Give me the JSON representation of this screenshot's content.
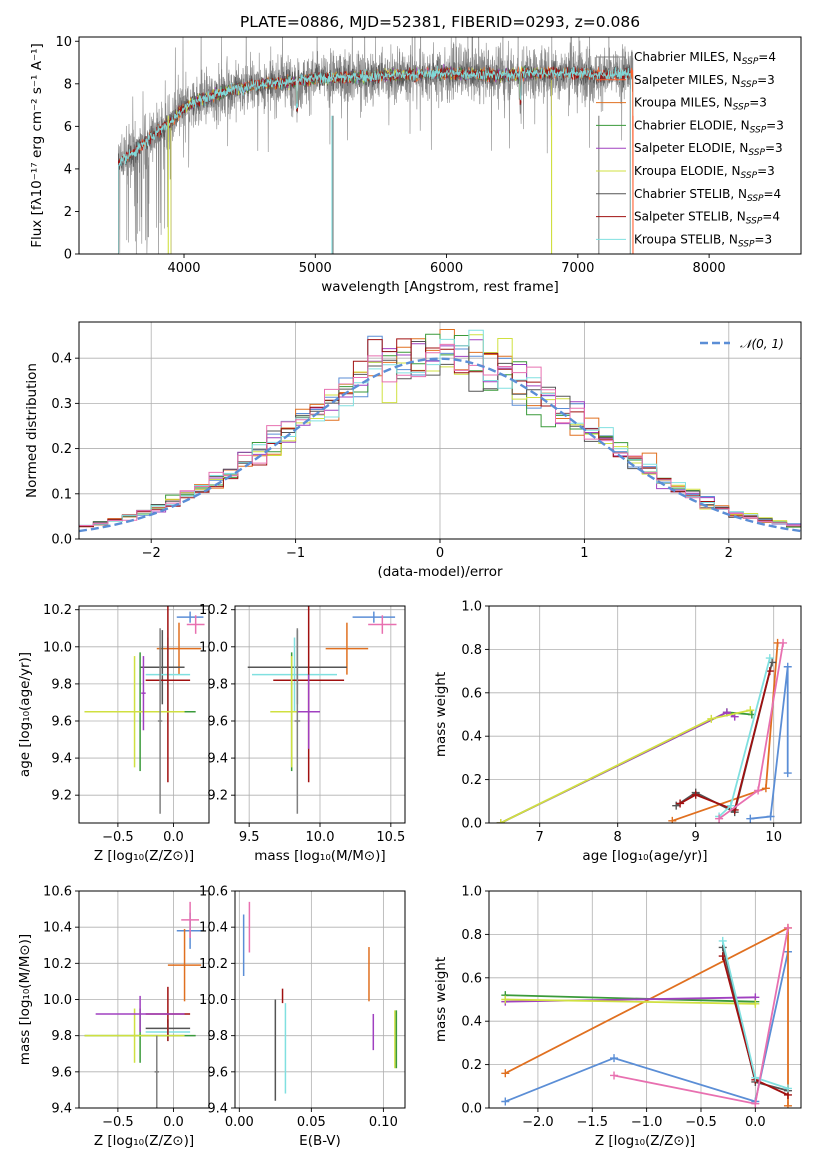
{
  "chart_data": [
    {
      "id": "spectrum",
      "type": "line",
      "title": "PLATE=0886, MJD=52381, FIBERID=0293, z=0.086",
      "xlabel": "wavelength [Angstrom, rest frame]",
      "ylabel": "Flux [fλ10⁻¹⁷ erg cm⁻² s⁻¹ A⁻¹]",
      "xlim": [
        3200,
        8700
      ],
      "ylim": [
        0,
        10.2
      ],
      "xticks": [
        4000,
        5000,
        6000,
        7000,
        8000
      ],
      "yticks": [
        0,
        2,
        4,
        6,
        8,
        10
      ],
      "grid": false,
      "legend": "upper-right",
      "series": [
        {
          "name": "Chabrier MILES, N_SSP=4",
          "color": "#808080",
          "x_range": [
            3500,
            7420
          ]
        },
        {
          "name": "Salpeter MILES, N_SSP=3",
          "color": "#ff6030",
          "x_range": [
            3500,
            7420
          ]
        },
        {
          "name": "Kroupa MILES, N_SSP=3",
          "color": "#e07020",
          "x_range": [
            3500,
            7420
          ]
        },
        {
          "name": "Chabrier ELODIE, N_SSP=3",
          "color": "#3a9a3a",
          "x_range": [
            3900,
            6800
          ]
        },
        {
          "name": "Salpeter ELODIE, N_SSP=3",
          "color": "#a040c0",
          "x_range": [
            3900,
            6800
          ]
        },
        {
          "name": "Kroupa ELODIE, N_SSP=3",
          "color": "#d0e040",
          "x_range": [
            3900,
            6800
          ]
        },
        {
          "name": "Chabrier STELIB, N_SSP=4",
          "color": "#555555",
          "x_range": [
            3500,
            7400
          ]
        },
        {
          "name": "Salpeter STELIB, N_SSP=4",
          "color": "#a01010",
          "x_range": [
            3500,
            7400
          ]
        },
        {
          "name": "Kroupa STELIB, N_SSP=3",
          "color": "#80e0e0",
          "x_range": [
            3500,
            7400
          ]
        }
      ],
      "continuum": {
        "x": [
          3500,
          3600,
          3700,
          3800,
          3900,
          4000,
          4100,
          4200,
          4400,
          4600,
          4800,
          5000,
          5200,
          5400,
          5600,
          5800,
          6000,
          6200,
          6400,
          6600,
          6800,
          7000,
          7200,
          7400
        ],
        "y": [
          4.3,
          4.7,
          5.2,
          5.8,
          6.2,
          6.9,
          7.2,
          7.4,
          7.8,
          8.0,
          8.1,
          8.25,
          8.3,
          8.35,
          8.4,
          8.45,
          8.5,
          8.45,
          8.4,
          8.5,
          8.5,
          8.5,
          8.4,
          8.5
        ]
      }
    },
    {
      "id": "residuals",
      "type": "line",
      "xlabel": "(data-model)/error",
      "ylabel": "Normed distribution",
      "xlim": [
        -2.5,
        2.5
      ],
      "ylim": [
        0,
        0.48
      ],
      "xticks": [
        -2,
        -1,
        0,
        1,
        2
      ],
      "yticks": [
        0.0,
        0.1,
        0.2,
        0.3,
        0.4
      ],
      "grid": true,
      "legend": "upper-right",
      "reference": {
        "name": "𝒩(0, 1)",
        "color": "#5b8ed6"
      },
      "series_colors": [
        "#5b8ed6",
        "#e07020",
        "#3a9a3a",
        "#a040c0",
        "#d0e040",
        "#555555",
        "#a01010",
        "#80e0e0",
        "#e870b0"
      ]
    },
    {
      "id": "age_vs_Z",
      "type": "scatter",
      "xlabel": "Z [log₁₀(Z/Z⊙)]",
      "ylabel": "age  [log₁₀(age/yr)]",
      "xlim": [
        -0.85,
        0.32
      ],
      "ylim": [
        9.05,
        10.22
      ],
      "xticks": [
        -0.5,
        0.0
      ],
      "yticks": [
        9.2,
        9.4,
        9.6,
        9.8,
        10.0,
        10.2
      ],
      "grid": true,
      "points": [
        {
          "color": "#5b8ed6",
          "x": 0.15,
          "xerr": 0.12,
          "y": 10.16,
          "yerr": 0.03
        },
        {
          "color": "#e870b0",
          "x": 0.2,
          "xerr": 0.08,
          "y": 10.12,
          "yerr": 0.05
        },
        {
          "color": "#e07020",
          "x": 0.05,
          "xerr": 0.2,
          "y": 9.99,
          "yerr": 0.14
        },
        {
          "color": "#555555",
          "x": -0.1,
          "xerr": 0.2,
          "y": 9.89,
          "yerr": 0.2
        },
        {
          "color": "#80e0e0",
          "x": -0.05,
          "xerr": 0.2,
          "y": 9.85,
          "yerr": 0.2
        },
        {
          "color": "#a01010",
          "x": -0.05,
          "xerr": 0.2,
          "y": 9.82,
          "yerr": 0.55
        },
        {
          "color": "#3a9a3a",
          "x": -0.3,
          "xerr": 0.5,
          "y": 9.65,
          "yerr": 0.32
        },
        {
          "color": "#d0e040",
          "x": -0.35,
          "xerr": 0.45,
          "y": 9.65,
          "yerr": 0.3
        },
        {
          "color": "#a040c0",
          "x": -0.27,
          "xerr": 0.02,
          "y": 9.75,
          "yerr": 0.2
        },
        {
          "color": "#808080",
          "x": -0.12,
          "xerr": 0.02,
          "y": 9.6,
          "yerr": 0.5
        }
      ]
    },
    {
      "id": "age_vs_mass",
      "type": "scatter",
      "xlabel": "mass [log₁₀(M/M⊙)]",
      "xlim": [
        9.4,
        10.6
      ],
      "ylim": [
        9.05,
        10.22
      ],
      "xticks": [
        9.5,
        10.0,
        10.5
      ],
      "yticks": [
        9.2,
        9.4,
        9.6,
        9.8,
        10.0,
        10.2
      ],
      "grid": true,
      "points": [
        {
          "color": "#5b8ed6",
          "x": 10.38,
          "xerr": 0.15,
          "y": 10.16,
          "yerr": 0.03
        },
        {
          "color": "#e870b0",
          "x": 10.44,
          "xerr": 0.1,
          "y": 10.12,
          "yerr": 0.05
        },
        {
          "color": "#e07020",
          "x": 10.19,
          "xerr": 0.15,
          "y": 9.99,
          "yerr": 0.14
        },
        {
          "color": "#555555",
          "x": 9.84,
          "xerr": 0.35,
          "y": 9.89,
          "yerr": 0.2
        },
        {
          "color": "#80e0e0",
          "x": 9.82,
          "xerr": 0.3,
          "y": 9.85,
          "yerr": 0.2
        },
        {
          "color": "#a01010",
          "x": 9.92,
          "xerr": 0.25,
          "y": 9.82,
          "yerr": 0.55
        },
        {
          "color": "#3a9a3a",
          "x": 9.8,
          "xerr": 0.15,
          "y": 9.65,
          "yerr": 0.32
        },
        {
          "color": "#d0e040",
          "x": 9.8,
          "xerr": 0.15,
          "y": 9.65,
          "yerr": 0.3
        },
        {
          "color": "#a040c0",
          "x": 9.92,
          "xerr": 0.08,
          "y": 9.65,
          "yerr": 0.2
        },
        {
          "color": "#808080",
          "x": 9.84,
          "xerr": 0.02,
          "y": 9.6,
          "yerr": 0.5
        }
      ]
    },
    {
      "id": "weight_vs_age",
      "type": "line",
      "xlabel": "age  [log₁₀(age/yr)]",
      "ylabel": "mass weight",
      "xlim": [
        6.35,
        10.35
      ],
      "ylim": [
        0.0,
        1.0
      ],
      "xticks": [
        7,
        8,
        9,
        10
      ],
      "yticks": [
        0.0,
        0.2,
        0.4,
        0.6,
        0.8,
        1.0
      ],
      "grid": true,
      "series": [
        {
          "color": "#5b8ed6",
          "x": [
            9.7,
            9.96,
            10.18,
            10.18
          ],
          "y": [
            0.02,
            0.03,
            0.72,
            0.23
          ]
        },
        {
          "color": "#e07020",
          "x": [
            8.7,
            9.9,
            10.05
          ],
          "y": [
            0.01,
            0.16,
            0.83
          ]
        },
        {
          "color": "#3a9a3a",
          "x": [
            6.5,
            9.4,
            9.72
          ],
          "y": [
            0.0,
            0.51,
            0.5
          ]
        },
        {
          "color": "#a040c0",
          "x": [
            6.5,
            9.4,
            9.5
          ],
          "y": [
            0.0,
            0.51,
            0.49
          ]
        },
        {
          "color": "#d0e040",
          "x": [
            6.5,
            9.2,
            9.7
          ],
          "y": [
            0.0,
            0.48,
            0.52
          ]
        },
        {
          "color": "#555555",
          "x": [
            8.75,
            9.0,
            9.5,
            9.98
          ],
          "y": [
            0.08,
            0.14,
            0.05,
            0.74
          ]
        },
        {
          "color": "#a01010",
          "x": [
            8.8,
            9.0,
            9.5,
            9.95
          ],
          "y": [
            0.09,
            0.13,
            0.06,
            0.7
          ]
        },
        {
          "color": "#80e0e0",
          "x": [
            9.3,
            9.45,
            9.95
          ],
          "y": [
            0.03,
            0.08,
            0.76
          ]
        },
        {
          "color": "#e870b0",
          "x": [
            9.3,
            9.8,
            10.12
          ],
          "y": [
            0.02,
            0.15,
            0.83
          ]
        }
      ]
    },
    {
      "id": "mass_vs_Z",
      "type": "scatter",
      "xlabel": "Z [log₁₀(Z/Z⊙)]",
      "ylabel": "mass [log₁₀(M/M⊙)]",
      "xlim": [
        -0.85,
        0.32
      ],
      "ylim": [
        9.4,
        10.6
      ],
      "xticks": [
        -0.5,
        0.0
      ],
      "yticks": [
        9.4,
        9.6,
        9.8,
        10.0,
        10.2,
        10.4,
        10.6
      ],
      "grid": true,
      "points": [
        {
          "color": "#5b8ed6",
          "x": 0.15,
          "xerr": 0.12,
          "y": 10.38,
          "yerr": 0.1
        },
        {
          "color": "#e870b0",
          "x": 0.15,
          "xerr": 0.08,
          "y": 10.44,
          "yerr": 0.1
        },
        {
          "color": "#e07020",
          "x": 0.1,
          "xerr": 0.15,
          "y": 10.19,
          "yerr": 0.2
        },
        {
          "color": "#555555",
          "x": -0.05,
          "xerr": 0.2,
          "y": 9.84,
          "yerr": 0.05
        },
        {
          "color": "#80e0e0",
          "x": -0.05,
          "xerr": 0.2,
          "y": 9.82,
          "yerr": 0.05
        },
        {
          "color": "#a01010",
          "x": -0.05,
          "xerr": 0.2,
          "y": 9.92,
          "yerr": 0.15
        },
        {
          "color": "#3a9a3a",
          "x": -0.3,
          "xerr": 0.5,
          "y": 9.8,
          "yerr": 0.15
        },
        {
          "color": "#d0e040",
          "x": -0.35,
          "xerr": 0.45,
          "y": 9.8,
          "yerr": 0.15
        },
        {
          "color": "#a040c0",
          "x": -0.3,
          "xerr": 0.4,
          "y": 9.92,
          "yerr": 0.1
        },
        {
          "color": "#808080",
          "x": -0.15,
          "xerr": 0.02,
          "y": 9.6,
          "yerr": 0.2
        }
      ]
    },
    {
      "id": "mass_vs_ebv",
      "type": "scatter",
      "xlabel": "E(B-V)",
      "xlim": [
        -0.003,
        0.115
      ],
      "ylim": [
        9.4,
        10.6
      ],
      "xticks": [
        0.0,
        0.05,
        0.1
      ],
      "yticks": [
        9.4,
        9.6,
        9.8,
        10.0,
        10.2,
        10.4,
        10.6
      ],
      "grid": true,
      "points": [
        {
          "color": "#5b8ed6",
          "x": 0.003,
          "y": 10.3,
          "yerr": 0.17
        },
        {
          "color": "#e870b0",
          "x": 0.007,
          "y": 10.4,
          "yerr": 0.14
        },
        {
          "color": "#555555",
          "x": 0.025,
          "y": 9.72,
          "yerr": 0.28
        },
        {
          "color": "#a01010",
          "x": 0.03,
          "y": 10.02,
          "yerr": 0.04
        },
        {
          "color": "#80e0e0",
          "x": 0.032,
          "y": 9.73,
          "yerr": 0.25
        },
        {
          "color": "#e07020",
          "x": 0.09,
          "y": 10.14,
          "yerr": 0.15
        },
        {
          "color": "#a040c0",
          "x": 0.093,
          "y": 9.82,
          "yerr": 0.1
        },
        {
          "color": "#d0e040",
          "x": 0.108,
          "y": 9.78,
          "yerr": 0.16
        },
        {
          "color": "#3a9a3a",
          "x": 0.109,
          "y": 9.78,
          "yerr": 0.16
        }
      ]
    },
    {
      "id": "weight_vs_Z",
      "type": "line",
      "xlabel": "Z [log₁₀(Z/Z⊙)]",
      "ylabel": "mass weight",
      "xlim": [
        -2.45,
        0.42
      ],
      "ylim": [
        0.0,
        1.0
      ],
      "xticks": [
        -2.0,
        -1.5,
        -1.0,
        -0.5,
        0.0
      ],
      "yticks": [
        0.0,
        0.2,
        0.4,
        0.6,
        0.8,
        1.0
      ],
      "grid": true,
      "series": [
        {
          "color": "#5b8ed6",
          "x": [
            -2.3,
            -1.3,
            0.0,
            0.3
          ],
          "y": [
            0.03,
            0.23,
            0.03,
            0.72
          ]
        },
        {
          "color": "#e07020",
          "x": [
            -2.3,
            0.3,
            0.3
          ],
          "y": [
            0.16,
            0.83,
            0.01
          ]
        },
        {
          "color": "#3a9a3a",
          "x": [
            -2.3,
            0.0
          ],
          "y": [
            0.52,
            0.49
          ]
        },
        {
          "color": "#a040c0",
          "x": [
            -2.3,
            0.0
          ],
          "y": [
            0.49,
            0.51
          ]
        },
        {
          "color": "#d0e040",
          "x": [
            -2.3,
            0.0
          ],
          "y": [
            0.5,
            0.48
          ]
        },
        {
          "color": "#555555",
          "x": [
            -0.3,
            0.0,
            0.3
          ],
          "y": [
            0.74,
            0.12,
            0.08
          ]
        },
        {
          "color": "#a01010",
          "x": [
            -0.3,
            0.0,
            0.3
          ],
          "y": [
            0.7,
            0.13,
            0.06
          ]
        },
        {
          "color": "#80e0e0",
          "x": [
            -0.3,
            0.0,
            0.3
          ],
          "y": [
            0.77,
            0.14,
            0.09
          ]
        },
        {
          "color": "#e870b0",
          "x": [
            -1.3,
            0.0,
            0.3
          ],
          "y": [
            0.15,
            0.02,
            0.83
          ]
        }
      ]
    }
  ]
}
